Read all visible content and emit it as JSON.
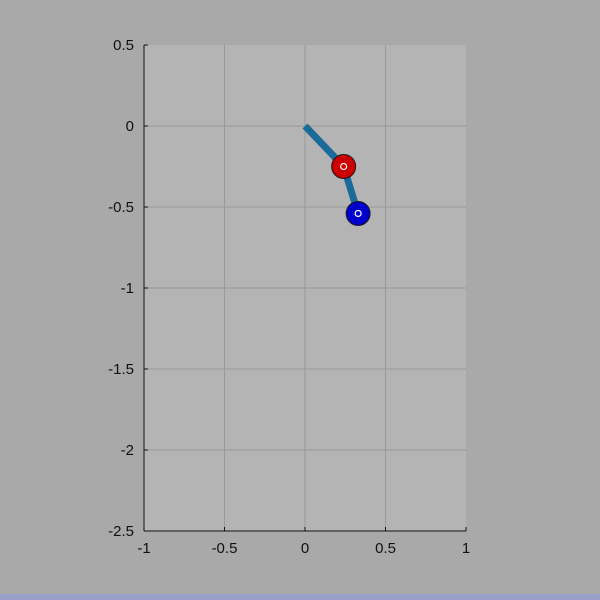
{
  "chart_data": {
    "type": "line",
    "title": "",
    "xlabel": "",
    "ylabel": "",
    "xlim": [
      -1,
      1
    ],
    "ylim": [
      -2.5,
      0.5
    ],
    "xticks": [
      -1,
      -0.5,
      0,
      0.5,
      1
    ],
    "yticks": [
      0.5,
      0,
      -0.5,
      -1,
      -1.5,
      -2,
      -2.5
    ],
    "xtick_labels": [
      "-1",
      "-0.5",
      "0",
      "0.5",
      "1"
    ],
    "ytick_labels": [
      "0.5",
      "0",
      "-0.5",
      "-1",
      "-1.5",
      "-2",
      "-2.5"
    ],
    "grid": true,
    "series": [
      {
        "x": [
          0,
          0.24,
          0.33
        ],
        "y": [
          0,
          -0.25,
          -0.54
        ],
        "color": "#1a6a9a"
      }
    ],
    "markers": [
      {
        "x": 0.24,
        "y": -0.25,
        "color": "#cc0000"
      },
      {
        "x": 0.33,
        "y": -0.54,
        "color": "#0000cc"
      }
    ]
  },
  "colors": {
    "figure_bg": "#a9a9a9",
    "axes_bg": "#b4b4b4",
    "grid": "#999999",
    "axis": "#111111"
  }
}
